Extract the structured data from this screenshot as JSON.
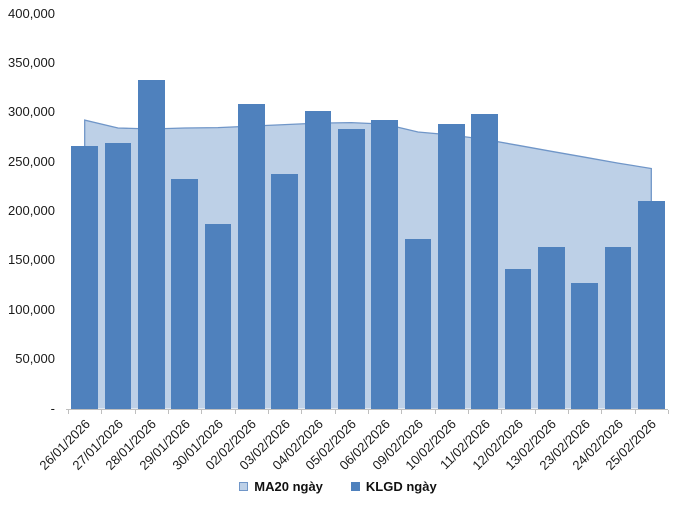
{
  "chart_data": {
    "type": "bar",
    "title": "",
    "categories": [
      "26/01/2026",
      "27/01/2026",
      "28/01/2026",
      "29/01/2026",
      "30/01/2026",
      "02/02/2026",
      "03/02/2026",
      "04/02/2026",
      "05/02/2026",
      "06/02/2026",
      "09/02/2026",
      "10/02/2026",
      "11/02/2026",
      "12/02/2026",
      "13/02/2026",
      "23/02/2026",
      "24/02/2026",
      "25/02/2026"
    ],
    "series": [
      {
        "name": "MA20 ngày",
        "type": "area",
        "values": [
          292000,
          284000,
          283000,
          284000,
          284500,
          286000,
          287500,
          289000,
          289500,
          288000,
          280000,
          277000,
          272500,
          266500,
          260500,
          254500,
          248500,
          243000
        ]
      },
      {
        "name": "KLGD ngày",
        "type": "bar",
        "values": [
          265500,
          268500,
          333000,
          232000,
          186500,
          308500,
          238000,
          301000,
          283000,
          292000,
          172000,
          288500,
          298000,
          141000,
          164000,
          127500,
          164000,
          210500
        ]
      }
    ],
    "xlabel": "",
    "ylabel": "",
    "ylim": [
      0,
      400000
    ],
    "ytick_step": 50000,
    "ytick_labels": [
      "-",
      "50,000",
      "100,000",
      "150,000",
      "200,000",
      "250,000",
      "300,000",
      "350,000",
      "400,000"
    ],
    "grid": false,
    "legend_position": "bottom"
  },
  "colors": {
    "bar_fill": "#4F81BD",
    "area_fill": "#BDD0E7",
    "area_line": "#7096C8",
    "axis_line": "#BFBFBF",
    "label_text": "#1a1a1a"
  }
}
